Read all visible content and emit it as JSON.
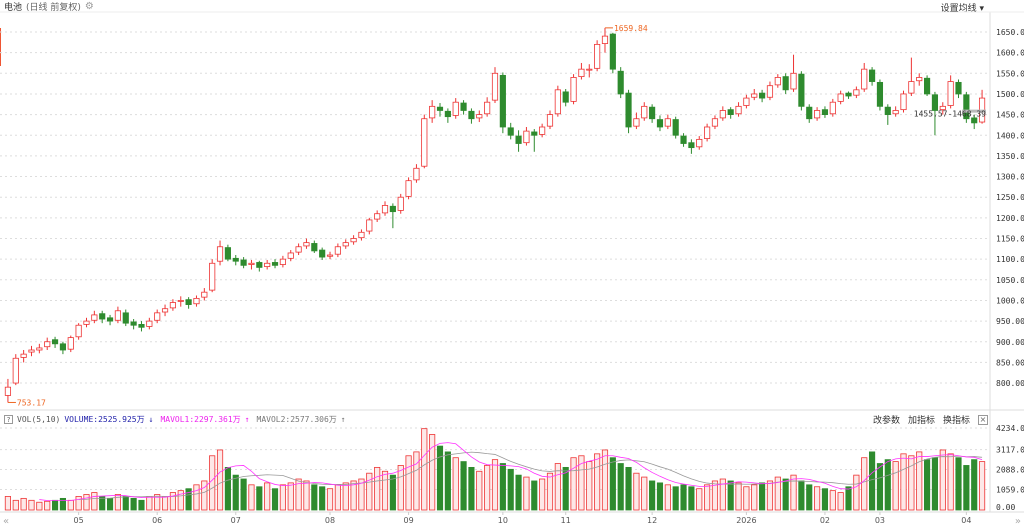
{
  "header": {
    "title": "电池",
    "subtitle": "(日线 前复权)",
    "ma_settings": "设置均线 ▾"
  },
  "volume_header": {
    "help": "?",
    "name": "VOL(5,10)",
    "volume": "VOLUME:2525.925万",
    "volume_arrow": "↓",
    "mavol1": "MAVOL1:2297.361万",
    "mavol1_arrow": "↑",
    "mavol2": "MAVOL2:2577.306万",
    "mavol2_arrow": "↑"
  },
  "volume_tools": {
    "change_params": "改参数",
    "add_indicator": "加指标",
    "switch_indicator": "换指标",
    "close": "×"
  },
  "nav": {
    "left": "«",
    "right": "»"
  },
  "colors": {
    "up": "#ee3333",
    "down": "#2e8b2e",
    "mavol1": "#ff33ff",
    "mavol2": "#999999",
    "price_axis": "#333"
  },
  "chart_data": {
    "type": "candlestick",
    "price_axis": {
      "ticks": [
        800,
        850,
        900,
        950,
        1000,
        1050,
        1100,
        1150,
        1200,
        1250,
        1300,
        1350,
        1400,
        1450,
        1500,
        1550,
        1600,
        1650
      ],
      "range": [
        770,
        1680
      ]
    },
    "volume_axis": {
      "ticks": [
        "4234.00",
        "3117.00",
        "2088.00",
        "1059.00",
        "0.00"
      ],
      "tick_values": [
        4234,
        3117,
        2088,
        1059,
        0
      ],
      "unit": "万"
    },
    "annotations": {
      "max": "1659.84",
      "min": "753.17",
      "range_label": "1455.57-1468.39"
    },
    "x_labels": [
      {
        "label": "05",
        "index": 9
      },
      {
        "label": "06",
        "index": 19
      },
      {
        "label": "07",
        "index": 29
      },
      {
        "label": "08",
        "index": 41
      },
      {
        "label": "09",
        "index": 51
      },
      {
        "label": "10",
        "index": 63
      },
      {
        "label": "11",
        "index": 71
      },
      {
        "label": "12",
        "index": 82
      },
      {
        "label": "2026",
        "index": 94
      },
      {
        "label": "02",
        "index": 104
      },
      {
        "label": "03",
        "index": 111
      },
      {
        "label": "04",
        "index": 122
      }
    ],
    "ohlc": [
      [
        770,
        810,
        753,
        790
      ],
      [
        800,
        870,
        795,
        860
      ],
      [
        862,
        880,
        850,
        870
      ],
      [
        875,
        890,
        865,
        880
      ],
      [
        880,
        895,
        872,
        885
      ],
      [
        888,
        910,
        880,
        900
      ],
      [
        905,
        912,
        885,
        895
      ],
      [
        895,
        900,
        870,
        880
      ],
      [
        882,
        915,
        875,
        910
      ],
      [
        912,
        945,
        905,
        940
      ],
      [
        942,
        958,
        935,
        950
      ],
      [
        952,
        975,
        945,
        965
      ],
      [
        968,
        975,
        945,
        955
      ],
      [
        958,
        965,
        940,
        950
      ],
      [
        952,
        985,
        945,
        975
      ],
      [
        970,
        978,
        938,
        945
      ],
      [
        948,
        955,
        930,
        940
      ],
      [
        942,
        950,
        925,
        935
      ],
      [
        937,
        958,
        930,
        950
      ],
      [
        952,
        978,
        945,
        970
      ],
      [
        972,
        990,
        962,
        980
      ],
      [
        982,
        1003,
        975,
        995
      ],
      [
        998,
        1010,
        985,
        1000
      ],
      [
        1002,
        1008,
        980,
        990
      ],
      [
        992,
        1012,
        985,
        1005
      ],
      [
        1008,
        1030,
        1000,
        1020
      ],
      [
        1025,
        1100,
        1020,
        1090
      ],
      [
        1095,
        1145,
        1085,
        1130
      ],
      [
        1128,
        1135,
        1095,
        1100
      ],
      [
        1102,
        1110,
        1085,
        1095
      ],
      [
        1098,
        1105,
        1078,
        1085
      ],
      [
        1087,
        1098,
        1075,
        1090
      ],
      [
        1092,
        1096,
        1070,
        1080
      ],
      [
        1082,
        1098,
        1075,
        1090
      ],
      [
        1092,
        1100,
        1078,
        1085
      ],
      [
        1087,
        1108,
        1080,
        1100
      ],
      [
        1102,
        1122,
        1095,
        1115
      ],
      [
        1117,
        1138,
        1110,
        1130
      ],
      [
        1132,
        1150,
        1125,
        1140
      ],
      [
        1138,
        1145,
        1115,
        1120
      ],
      [
        1122,
        1128,
        1098,
        1105
      ],
      [
        1107,
        1118,
        1100,
        1110
      ],
      [
        1112,
        1138,
        1105,
        1130
      ],
      [
        1132,
        1148,
        1125,
        1140
      ],
      [
        1142,
        1158,
        1135,
        1150
      ],
      [
        1152,
        1172,
        1145,
        1165
      ],
      [
        1168,
        1200,
        1160,
        1195
      ],
      [
        1197,
        1218,
        1190,
        1210
      ],
      [
        1212,
        1240,
        1205,
        1230
      ],
      [
        1228,
        1235,
        1175,
        1215
      ],
      [
        1218,
        1258,
        1210,
        1250
      ],
      [
        1252,
        1298,
        1245,
        1290
      ],
      [
        1292,
        1330,
        1285,
        1320
      ],
      [
        1325,
        1450,
        1320,
        1440
      ],
      [
        1442,
        1485,
        1430,
        1470
      ],
      [
        1468,
        1478,
        1445,
        1460
      ],
      [
        1458,
        1465,
        1430,
        1445
      ],
      [
        1448,
        1490,
        1440,
        1480
      ],
      [
        1478,
        1485,
        1450,
        1460
      ],
      [
        1458,
        1465,
        1428,
        1440
      ],
      [
        1442,
        1460,
        1432,
        1450
      ],
      [
        1452,
        1492,
        1445,
        1480
      ],
      [
        1485,
        1565,
        1478,
        1550
      ],
      [
        1545,
        1552,
        1405,
        1420
      ],
      [
        1418,
        1430,
        1390,
        1400
      ],
      [
        1398,
        1412,
        1360,
        1380
      ],
      [
        1382,
        1420,
        1375,
        1410
      ],
      [
        1408,
        1415,
        1360,
        1400
      ],
      [
        1402,
        1428,
        1395,
        1420
      ],
      [
        1422,
        1460,
        1415,
        1450
      ],
      [
        1452,
        1520,
        1445,
        1510
      ],
      [
        1505,
        1512,
        1470,
        1480
      ],
      [
        1482,
        1548,
        1475,
        1540
      ],
      [
        1542,
        1575,
        1535,
        1560
      ],
      [
        1558,
        1572,
        1540,
        1560
      ],
      [
        1562,
        1630,
        1555,
        1620
      ],
      [
        1622,
        1660,
        1600,
        1640
      ],
      [
        1645,
        1648,
        1550,
        1560
      ],
      [
        1555,
        1565,
        1490,
        1500
      ],
      [
        1502,
        1510,
        1405,
        1420
      ],
      [
        1422,
        1455,
        1415,
        1440
      ],
      [
        1442,
        1480,
        1435,
        1470
      ],
      [
        1468,
        1475,
        1430,
        1440
      ],
      [
        1438,
        1448,
        1410,
        1420
      ],
      [
        1422,
        1450,
        1415,
        1440
      ],
      [
        1438,
        1445,
        1392,
        1400
      ],
      [
        1398,
        1405,
        1372,
        1380
      ],
      [
        1382,
        1390,
        1355,
        1370
      ],
      [
        1372,
        1398,
        1365,
        1390
      ],
      [
        1392,
        1428,
        1385,
        1420
      ],
      [
        1422,
        1448,
        1415,
        1440
      ],
      [
        1442,
        1470,
        1435,
        1460
      ],
      [
        1462,
        1468,
        1440,
        1450
      ],
      [
        1452,
        1480,
        1445,
        1470
      ],
      [
        1472,
        1498,
        1465,
        1490
      ],
      [
        1492,
        1512,
        1485,
        1500
      ],
      [
        1502,
        1510,
        1480,
        1490
      ],
      [
        1492,
        1530,
        1485,
        1520
      ],
      [
        1522,
        1548,
        1515,
        1540
      ],
      [
        1542,
        1550,
        1500,
        1510
      ],
      [
        1512,
        1595,
        1505,
        1550
      ],
      [
        1548,
        1555,
        1460,
        1470
      ],
      [
        1468,
        1475,
        1430,
        1440
      ],
      [
        1442,
        1468,
        1435,
        1460
      ],
      [
        1462,
        1470,
        1442,
        1450
      ],
      [
        1452,
        1488,
        1445,
        1480
      ],
      [
        1482,
        1508,
        1475,
        1500
      ],
      [
        1502,
        1506,
        1488,
        1495
      ],
      [
        1497,
        1518,
        1490,
        1510
      ],
      [
        1512,
        1575,
        1505,
        1560
      ],
      [
        1558,
        1565,
        1520,
        1530
      ],
      [
        1528,
        1535,
        1460,
        1470
      ],
      [
        1468,
        1475,
        1425,
        1450
      ],
      [
        1452,
        1470,
        1445,
        1460
      ],
      [
        1462,
        1508,
        1455,
        1500
      ],
      [
        1502,
        1588,
        1495,
        1530
      ],
      [
        1532,
        1550,
        1520,
        1540
      ],
      [
        1538,
        1545,
        1495,
        1500
      ],
      [
        1498,
        1505,
        1400,
        1460
      ],
      [
        1462,
        1480,
        1450,
        1470
      ],
      [
        1472,
        1545,
        1465,
        1530
      ],
      [
        1528,
        1535,
        1490,
        1500
      ],
      [
        1498,
        1505,
        1430,
        1440
      ],
      [
        1442,
        1450,
        1415,
        1430
      ],
      [
        1432,
        1510,
        1428,
        1490
      ]
    ],
    "volume": [
      700,
      500,
      600,
      500,
      400,
      450,
      500,
      600,
      500,
      700,
      800,
      900,
      700,
      600,
      800,
      700,
      600,
      500,
      700,
      800,
      700,
      900,
      1000,
      1100,
      1300,
      1500,
      2800,
      3100,
      2200,
      1800,
      1600,
      1300,
      1200,
      1400,
      1100,
      1300,
      1400,
      1600,
      1500,
      1300,
      1200,
      1100,
      1300,
      1400,
      1500,
      1600,
      1900,
      2200,
      2000,
      1800,
      2300,
      2800,
      3000,
      4200,
      3900,
      3300,
      3000,
      2700,
      2500,
      2200,
      2000,
      2300,
      2600,
      2400,
      2100,
      1800,
      1700,
      1500,
      1600,
      1900,
      2400,
      2200,
      2700,
      2800,
      2500,
      2900,
      3100,
      2700,
      2400,
      2200,
      1900,
      1700,
      1500,
      1400,
      1300,
      1200,
      1300,
      1200,
      1100,
      1300,
      1500,
      1600,
      1500,
      1400,
      1200,
      1300,
      1400,
      1500,
      1700,
      1600,
      1800,
      1500,
      1300,
      1200,
      1100,
      1000,
      900,
      1200,
      1800,
      2700,
      3000,
      2400,
      2600,
      2500,
      2900,
      2800,
      3000,
      2600,
      2700,
      3100,
      2900,
      2700,
      2300,
      2600,
      2500
    ]
  }
}
